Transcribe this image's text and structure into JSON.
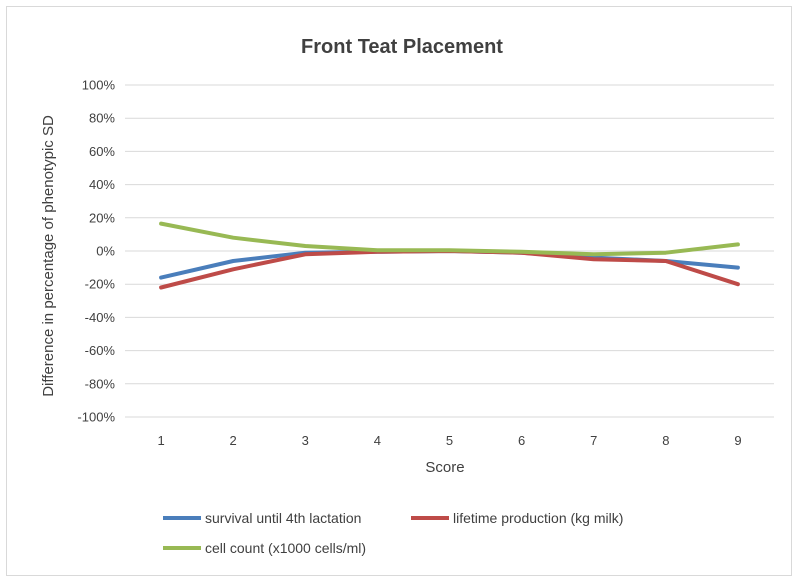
{
  "chart_data": {
    "type": "line",
    "title": "Front Teat Placement",
    "xlabel": "Score",
    "ylabel": "Difference in percentage of phenotypic SD",
    "x": [
      1,
      2,
      3,
      4,
      5,
      6,
      7,
      8,
      9
    ],
    "ylim": [
      -100,
      100
    ],
    "ytick_values": [
      100,
      80,
      60,
      40,
      20,
      0,
      -20,
      -40,
      -60,
      -80,
      -100
    ],
    "ytick_labels": [
      "100%",
      "80%",
      "60%",
      "40%",
      "20%",
      "0%",
      "-20%",
      "-40%",
      "-60%",
      "-80%",
      "-100%"
    ],
    "grid": true,
    "legend_position": "bottom",
    "series": [
      {
        "name": "survival until 4th lactation",
        "color": "#4a7ebb",
        "values": [
          -16,
          -6,
          -1,
          -0.5,
          0,
          -1,
          -4,
          -6,
          -10
        ]
      },
      {
        "name": "lifetime production (kg milk)",
        "color": "#be4b48",
        "values": [
          -22,
          -11,
          -2,
          -0.5,
          0,
          -1,
          -5,
          -6,
          -20
        ]
      },
      {
        "name": "cell count (x1000 cells/ml)",
        "color": "#98b954",
        "values": [
          16.5,
          8,
          3,
          0.5,
          0.5,
          -0.5,
          -2,
          -1,
          4
        ]
      }
    ]
  }
}
